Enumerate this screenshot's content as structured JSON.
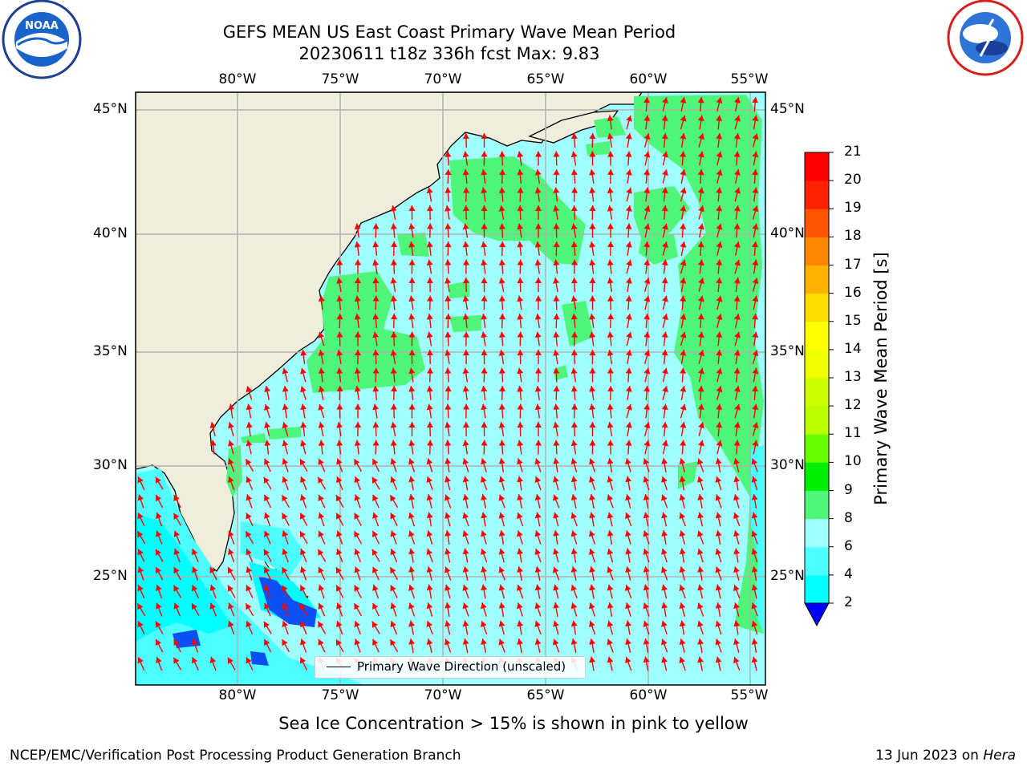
{
  "header": {
    "title_line1": "GEFS MEAN US East Coast Primary Wave Mean Period",
    "title_line2": "20230611 t18z 336h fcst   Max: 9.83"
  },
  "logos": {
    "left": "NOAA",
    "left_ring_text": "NATIONAL OCEANIC AND ATMOSPHERIC ADMINISTRATION · U.S. DEPARTMENT OF COMMERCE",
    "right_ring_text": "NATIONAL WEATHER SERVICE"
  },
  "axes": {
    "lon_labels": [
      "80°W",
      "75°W",
      "70°W",
      "65°W",
      "60°W",
      "55°W"
    ],
    "lat_labels": [
      "45°N",
      "40°N",
      "35°N",
      "30°N",
      "25°N"
    ]
  },
  "legend": {
    "label": "Primary Wave Direction (unscaled)"
  },
  "colorbar": {
    "title": "Primary Wave Mean Period [s]",
    "ticks": [
      "21",
      "20",
      "19",
      "18",
      "17",
      "16",
      "15",
      "14",
      "13",
      "12",
      "11",
      "10",
      "9",
      "8",
      "6",
      "4",
      "2"
    ],
    "levels_low_to_high": [
      2,
      4,
      6,
      8,
      9,
      10,
      11,
      12,
      13,
      14,
      15,
      16,
      17,
      18,
      19,
      20,
      21
    ],
    "colors_low_to_high": [
      "#0a50f5",
      "#00ffff",
      "#4dffff",
      "#a0ffff",
      "#4ef77a",
      "#00ee00",
      "#66ff00",
      "#bbff00",
      "#ccff00",
      "#eeff00",
      "#ffff00",
      "#ffdd00",
      "#ffb300",
      "#ff8800",
      "#ff5500",
      "#ff2200",
      "#ff0000"
    ],
    "under_color": "#0000ff"
  },
  "map": {
    "land_color": "#efeedc",
    "ocean_base_color": "#a0ffff",
    "arrow_color": "#ff0000",
    "grid_color": "#b0b0b0"
  },
  "footer": {
    "subtitle": "Sea Ice Concentration > 15% is shown in pink to yellow",
    "left": "NCEP/EMC/Verification Post Processing Product Generation Branch",
    "right_date": "13 Jun 2023 on ",
    "right_host": "Hera"
  }
}
